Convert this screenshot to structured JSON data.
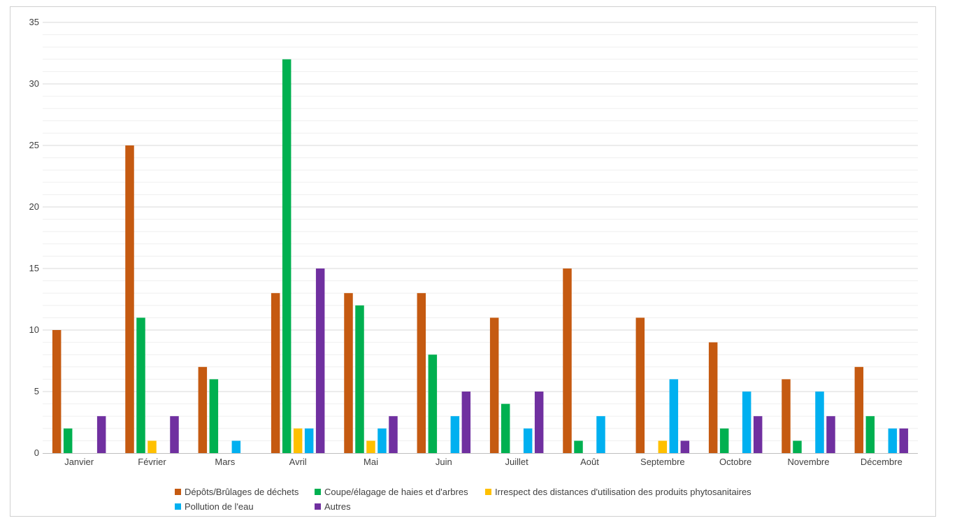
{
  "chart_data": {
    "type": "bar",
    "title": "",
    "xlabel": "",
    "ylabel": "",
    "ylim": [
      0,
      35
    ],
    "yticks": [
      0,
      5,
      10,
      15,
      20,
      25,
      30,
      35
    ],
    "grid": true,
    "legend_position": "bottom",
    "categories": [
      "Janvier",
      "Février",
      "Mars",
      "Avril",
      "Mai",
      "Juin",
      "Juillet",
      "Août",
      "Septembre",
      "Octobre",
      "Novembre",
      "Décembre"
    ],
    "series": [
      {
        "name": "Dépôts/Brûlages de déchets",
        "color": "#c55a11",
        "values": [
          10,
          25,
          7,
          13,
          13,
          13,
          11,
          15,
          11,
          9,
          6,
          7
        ]
      },
      {
        "name": "Coupe/élagage de haies et d'arbres",
        "color": "#00b050",
        "values": [
          2,
          11,
          6,
          32,
          12,
          8,
          4,
          1,
          0,
          2,
          1,
          3
        ]
      },
      {
        "name": "Irrespect des distances d'utilisation des produits phytosanitaires",
        "color": "#ffc000",
        "values": [
          0,
          1,
          0,
          2,
          1,
          0,
          0,
          0,
          1,
          0,
          0,
          0
        ]
      },
      {
        "name": "Pollution de l'eau",
        "color": "#00b0f0",
        "values": [
          0,
          0,
          1,
          2,
          2,
          3,
          2,
          3,
          6,
          5,
          5,
          2
        ]
      },
      {
        "name": "Autres",
        "color": "#7030a0",
        "values": [
          3,
          3,
          0,
          15,
          3,
          5,
          5,
          0,
          1,
          3,
          3,
          2
        ]
      }
    ]
  }
}
